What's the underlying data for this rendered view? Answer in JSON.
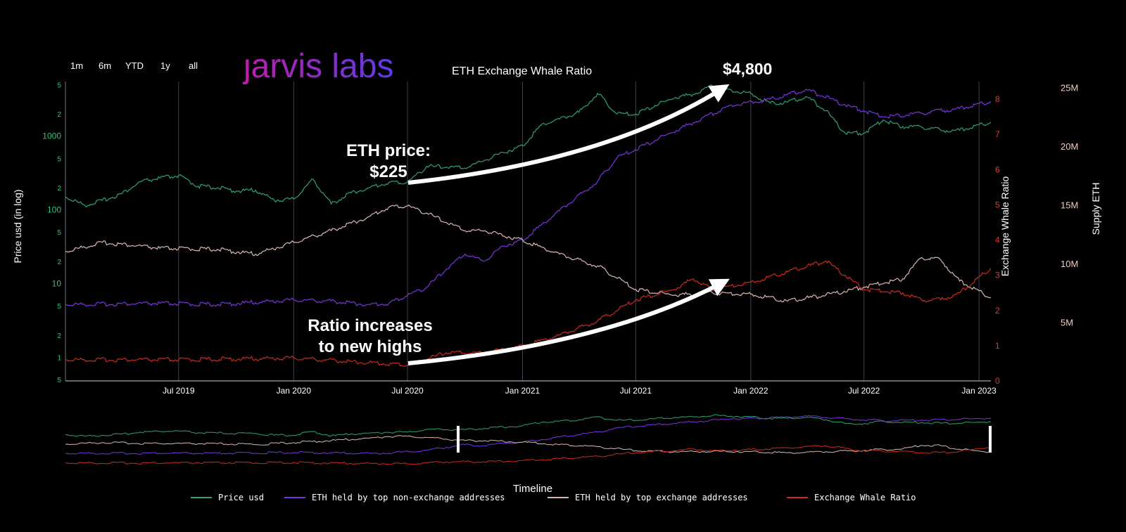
{
  "brand": {
    "logo_dot": "ȷ",
    "logo_text": "arvis labs"
  },
  "title": "ETH Exchange Whale Ratio",
  "range_buttons": [
    "1m",
    "6m",
    "YTD",
    "1y",
    "all"
  ],
  "colors": {
    "price": "#2ea36a",
    "non_exchange": "#7b33e0",
    "exchange": "#d9b8b0",
    "ratio": "#cc2a1e",
    "grid": "#3a4250",
    "left_tick": "#2ec27e",
    "right_tick": "#e03a2e",
    "supply_tick": "#f0c8c0",
    "logo_start": "#c21bb0",
    "logo_end": "#5b3ce0"
  },
  "annotations": {
    "peak_price": "$4,800",
    "start_price_line1": "ETH price:",
    "start_price_line2": "$225",
    "ratio_line1": "Ratio increases",
    "ratio_line2": "to new highs"
  },
  "chart_data": {
    "type": "line",
    "x_range": [
      "2019-01-01",
      "2023-01-20"
    ],
    "x_ticks": [
      "Jul 2019",
      "Jan 2020",
      "Jul 2020",
      "Jan 2021",
      "Jul 2021",
      "Jan 2022",
      "Jul 2022",
      "Jan 2023"
    ],
    "x_tick_dates": [
      "2019-07-01",
      "2020-01-01",
      "2020-07-01",
      "2021-01-01",
      "2021-07-01",
      "2022-01-01",
      "2022-07-01",
      "2023-01-01"
    ],
    "xlabel": "Timeline",
    "axes": {
      "price": {
        "label": "Price usd (in log)",
        "scale": "log",
        "range": [
          0.48,
          5500
        ],
        "ticks": [
          {
            "v": 0.5,
            "t": "5"
          },
          {
            "v": 1,
            "t": "1"
          },
          {
            "v": 2,
            "t": "2"
          },
          {
            "v": 5,
            "t": "5"
          },
          {
            "v": 10,
            "t": "10"
          },
          {
            "v": 20,
            "t": "2"
          },
          {
            "v": 50,
            "t": "5"
          },
          {
            "v": 100,
            "t": "100"
          },
          {
            "v": 200,
            "t": "2"
          },
          {
            "v": 500,
            "t": "5"
          },
          {
            "v": 1000,
            "t": "1000"
          },
          {
            "v": 2000,
            "t": "2"
          },
          {
            "v": 5000,
            "t": "5"
          }
        ]
      },
      "ratio": {
        "label": "Exchange Whale Ratio",
        "range": [
          0,
          8.5
        ],
        "ticks": [
          0,
          1,
          2,
          3,
          4,
          5,
          6,
          7,
          8
        ]
      },
      "supply": {
        "label": "Supply ETH",
        "range": [
          0,
          25500000
        ],
        "ticks": [
          {
            "v": 5000000,
            "t": "5M"
          },
          {
            "v": 10000000,
            "t": "10M"
          },
          {
            "v": 15000000,
            "t": "15M"
          },
          {
            "v": 20000000,
            "t": "20M"
          },
          {
            "v": 25000000,
            "t": "25M"
          }
        ]
      }
    },
    "series": [
      {
        "name": "Price usd",
        "axis": "price",
        "color_key": "price",
        "points": [
          [
            "2019-01-01",
            150
          ],
          [
            "2019-02-01",
            115
          ],
          [
            "2019-03-01",
            135
          ],
          [
            "2019-04-01",
            165
          ],
          [
            "2019-05-01",
            240
          ],
          [
            "2019-06-01",
            270
          ],
          [
            "2019-07-01",
            290
          ],
          [
            "2019-08-01",
            210
          ],
          [
            "2019-09-01",
            200
          ],
          [
            "2019-10-01",
            180
          ],
          [
            "2019-11-01",
            185
          ],
          [
            "2019-12-01",
            135
          ],
          [
            "2020-01-01",
            140
          ],
          [
            "2020-02-01",
            260
          ],
          [
            "2020-03-01",
            120
          ],
          [
            "2020-04-01",
            170
          ],
          [
            "2020-05-01",
            200
          ],
          [
            "2020-06-01",
            235
          ],
          [
            "2020-07-01",
            235
          ],
          [
            "2020-08-01",
            390
          ],
          [
            "2020-09-01",
            380
          ],
          [
            "2020-10-01",
            370
          ],
          [
            "2020-11-01",
            470
          ],
          [
            "2020-12-01",
            600
          ],
          [
            "2021-01-01",
            740
          ],
          [
            "2021-02-01",
            1450
          ],
          [
            "2021-03-01",
            1700
          ],
          [
            "2021-04-01",
            2100
          ],
          [
            "2021-05-01",
            3800
          ],
          [
            "2021-06-01",
            2000
          ],
          [
            "2021-07-01",
            2000
          ],
          [
            "2021-08-01",
            2600
          ],
          [
            "2021-09-01",
            3300
          ],
          [
            "2021-10-01",
            3700
          ],
          [
            "2021-11-01",
            4800
          ],
          [
            "2021-12-01",
            4200
          ],
          [
            "2022-01-01",
            3800
          ],
          [
            "2022-02-01",
            2800
          ],
          [
            "2022-03-01",
            2900
          ],
          [
            "2022-04-01",
            3400
          ],
          [
            "2022-05-01",
            2200
          ],
          [
            "2022-06-01",
            1100
          ],
          [
            "2022-07-01",
            1100
          ],
          [
            "2022-08-01",
            1650
          ],
          [
            "2022-09-01",
            1350
          ],
          [
            "2022-10-01",
            1330
          ],
          [
            "2022-11-01",
            1200
          ],
          [
            "2022-12-01",
            1200
          ],
          [
            "2023-01-20",
            1550
          ]
        ]
      },
      {
        "name": "ETH held by top non-exchange addresses",
        "axis": "supply",
        "color_key": "non_exchange",
        "points": [
          [
            "2019-01-01",
            6500000
          ],
          [
            "2019-06-01",
            6600000
          ],
          [
            "2019-09-01",
            6500000
          ],
          [
            "2020-01-01",
            6900000
          ],
          [
            "2020-03-01",
            6800000
          ],
          [
            "2020-05-01",
            6500000
          ],
          [
            "2020-06-01",
            6600000
          ],
          [
            "2020-08-01",
            8000000
          ],
          [
            "2020-09-01",
            9500000
          ],
          [
            "2020-10-01",
            10800000
          ],
          [
            "2020-11-01",
            10200000
          ],
          [
            "2020-12-01",
            11500000
          ],
          [
            "2021-01-01",
            12000000
          ],
          [
            "2021-03-01",
            14500000
          ],
          [
            "2021-05-01",
            17000000
          ],
          [
            "2021-06-01",
            19000000
          ],
          [
            "2021-08-01",
            20500000
          ],
          [
            "2021-10-01",
            22000000
          ],
          [
            "2021-12-01",
            23500000
          ],
          [
            "2022-02-01",
            24000000
          ],
          [
            "2022-04-01",
            24800000
          ],
          [
            "2022-06-01",
            23500000
          ],
          [
            "2022-08-01",
            22500000
          ],
          [
            "2022-10-01",
            22800000
          ],
          [
            "2022-12-01",
            23200000
          ],
          [
            "2023-01-20",
            23800000
          ]
        ]
      },
      {
        "name": "ETH held by top exchange addresses",
        "axis": "supply",
        "color_key": "exchange",
        "points": [
          [
            "2019-01-01",
            11000000
          ],
          [
            "2019-03-01",
            11800000
          ],
          [
            "2019-06-01",
            11300000
          ],
          [
            "2019-09-01",
            11200000
          ],
          [
            "2019-11-01",
            10800000
          ],
          [
            "2020-01-01",
            11800000
          ],
          [
            "2020-03-01",
            12800000
          ],
          [
            "2020-05-01",
            14000000
          ],
          [
            "2020-06-01",
            14800000
          ],
          [
            "2020-07-01",
            14900000
          ],
          [
            "2020-08-01",
            14300000
          ],
          [
            "2020-09-01",
            13500000
          ],
          [
            "2020-10-01",
            12800000
          ],
          [
            "2020-11-01",
            12800000
          ],
          [
            "2021-01-01",
            12000000
          ],
          [
            "2021-03-01",
            10800000
          ],
          [
            "2021-05-01",
            9800000
          ],
          [
            "2021-07-01",
            7800000
          ],
          [
            "2021-09-01",
            7300000
          ],
          [
            "2021-11-01",
            7500000
          ],
          [
            "2022-01-01",
            7400000
          ],
          [
            "2022-03-01",
            6800000
          ],
          [
            "2022-05-01",
            7300000
          ],
          [
            "2022-07-01",
            8000000
          ],
          [
            "2022-09-01",
            8700000
          ],
          [
            "2022-10-01",
            10500000
          ],
          [
            "2022-11-01",
            10300000
          ],
          [
            "2022-12-01",
            8500000
          ],
          [
            "2023-01-20",
            7100000
          ]
        ]
      },
      {
        "name": "Exchange Whale Ratio",
        "axis": "ratio",
        "color_key": "ratio",
        "points": [
          [
            "2019-01-01",
            0.6
          ],
          [
            "2019-07-01",
            0.6
          ],
          [
            "2020-01-01",
            0.65
          ],
          [
            "2020-04-01",
            0.55
          ],
          [
            "2020-07-01",
            0.45
          ],
          [
            "2020-09-01",
            0.8
          ],
          [
            "2020-11-01",
            0.8
          ],
          [
            "2021-01-01",
            1.0
          ],
          [
            "2021-03-01",
            1.3
          ],
          [
            "2021-05-01",
            1.7
          ],
          [
            "2021-07-01",
            2.3
          ],
          [
            "2021-09-01",
            2.6
          ],
          [
            "2021-10-01",
            2.9
          ],
          [
            "2021-11-01",
            2.6
          ],
          [
            "2022-01-01",
            2.8
          ],
          [
            "2022-03-01",
            3.1
          ],
          [
            "2022-05-01",
            3.4
          ],
          [
            "2022-06-01",
            3.0
          ],
          [
            "2022-07-01",
            2.6
          ],
          [
            "2022-09-01",
            2.5
          ],
          [
            "2022-10-01",
            2.3
          ],
          [
            "2022-11-01",
            2.3
          ],
          [
            "2022-12-01",
            2.5
          ],
          [
            "2023-01-20",
            3.2
          ]
        ]
      }
    ]
  }
}
